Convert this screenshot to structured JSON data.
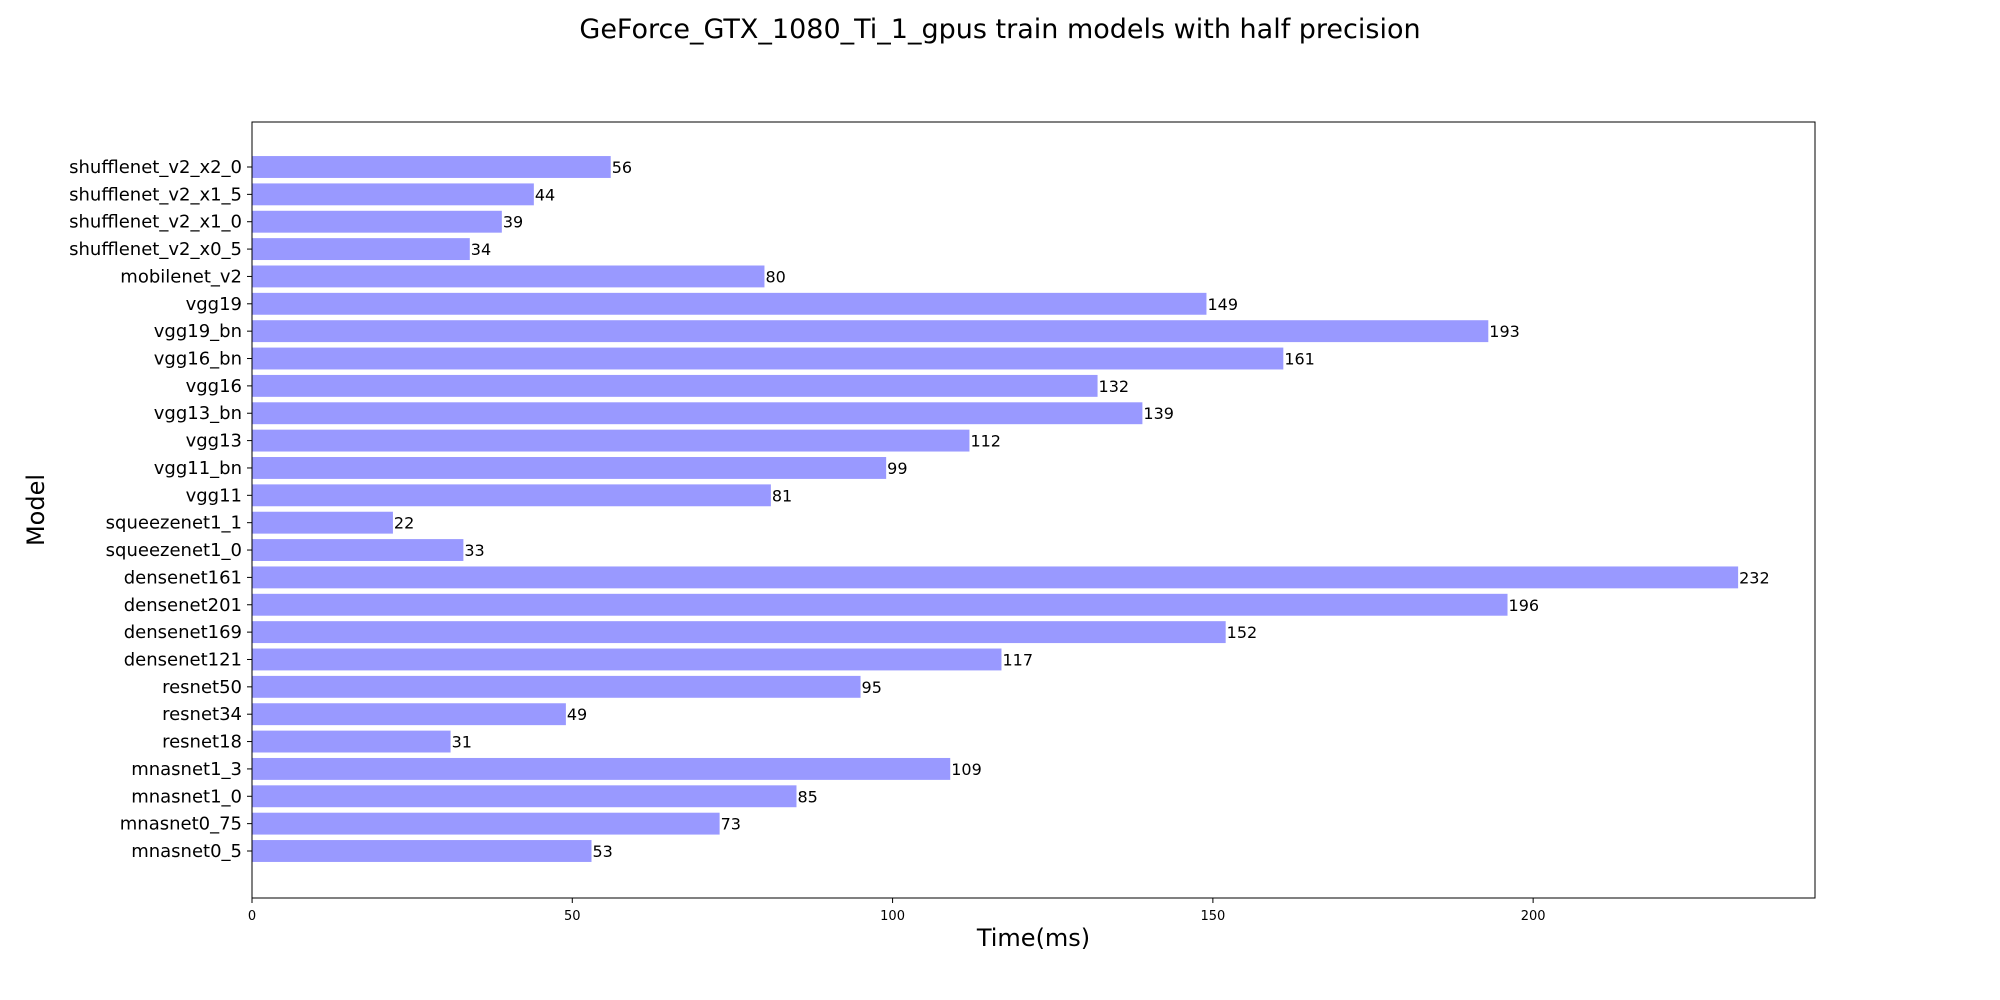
{
  "chart_data": {
    "type": "bar",
    "orientation": "horizontal",
    "title": "GeForce_GTX_1080_Ti_1_gpus train models with half precision",
    "xlabel": "Time(ms)",
    "ylabel": "Model",
    "xlim": [
      0,
      244
    ],
    "xticks": [
      0,
      50,
      100,
      150,
      200
    ],
    "grid": false,
    "bar_color": "#9999ff",
    "categories": [
      "mnasnet0_5",
      "mnasnet0_75",
      "mnasnet1_0",
      "mnasnet1_3",
      "resnet18",
      "resnet34",
      "resnet50",
      "densenet121",
      "densenet169",
      "densenet201",
      "densenet161",
      "squeezenet1_0",
      "squeezenet1_1",
      "vgg11",
      "vgg11_bn",
      "vgg13",
      "vgg13_bn",
      "vgg16",
      "vgg16_bn",
      "vgg19_bn",
      "vgg19",
      "mobilenet_v2",
      "shufflenet_v2_x0_5",
      "shufflenet_v2_x1_0",
      "shufflenet_v2_x1_5",
      "shufflenet_v2_x2_0"
    ],
    "values": [
      53,
      73,
      85,
      109,
      31,
      49,
      95,
      117,
      152,
      196,
      232,
      33,
      22,
      81,
      99,
      112,
      139,
      132,
      161,
      193,
      149,
      80,
      34,
      39,
      44,
      56
    ],
    "value_labels": [
      "53",
      "73",
      "85",
      "109",
      "31",
      "49",
      "95",
      "117",
      "152",
      "196",
      "232",
      "33",
      "22",
      "81",
      "99",
      "112",
      "139",
      "132",
      "161",
      "193",
      "149",
      "80",
      "34",
      "39",
      "44",
      "56"
    ]
  }
}
